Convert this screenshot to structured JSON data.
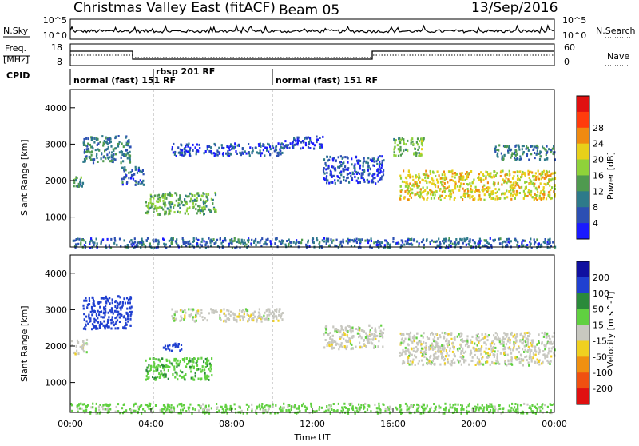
{
  "header": {
    "title": "Christmas Valley East (fitACF)",
    "beam": "Beam 05",
    "date": "13/Sep/2016"
  },
  "nsky_panel": {
    "left_label": "N.Sky",
    "right_label": "N.Search",
    "left_ticks": [
      "10^5",
      "10^0"
    ],
    "right_ticks": [
      "10^5",
      "10^0"
    ]
  },
  "freq_panel": {
    "left_label_line1": "Freq.",
    "left_label_line2": "[MHz]",
    "left_ticks": [
      "18",
      "8"
    ],
    "right_ticks": [
      "60",
      "0"
    ],
    "right_label": "Nave"
  },
  "cpid_panel": {
    "label": "CPID",
    "segments": [
      {
        "text": "normal (fast) 151 RF",
        "start_hour": 0
      },
      {
        "text": "rbsp 201 RF",
        "start_hour": 3.9
      },
      {
        "text": "normal (fast) 151 RF",
        "start_hour": 10.0
      }
    ]
  },
  "x_axis": {
    "label": "Time UT",
    "ticks": [
      "00:00",
      "04:00",
      "08:00",
      "12:00",
      "16:00",
      "20:00",
      "00:00"
    ],
    "range_hours": [
      0,
      24
    ]
  },
  "chart_data": [
    {
      "type": "heatmap",
      "quantity": "Power",
      "ylabel": "Slant Range [km]",
      "ylim": [
        180,
        4500
      ],
      "yticks": [
        1000,
        2000,
        3000,
        4000
      ],
      "colorbar_label": "Power [dB]",
      "colorbar_ticks": [
        4,
        8,
        12,
        16,
        20,
        24,
        28
      ],
      "colorbar_colors": [
        "#1a1aff",
        "#2c4fb3",
        "#2e7a8a",
        "#4f9a4f",
        "#8fd23a",
        "#e8d01a",
        "#f08a10",
        "#ff3c0c",
        "#e01010"
      ],
      "echo_regions": [
        {
          "t_start": 0.0,
          "t_end": 0.6,
          "r_min": 1850,
          "r_max": 2150,
          "level": 14
        },
        {
          "t_start": 0.6,
          "t_end": 3.0,
          "r_min": 2500,
          "r_max": 3250,
          "level": 12
        },
        {
          "t_start": 2.5,
          "t_end": 3.6,
          "r_min": 1900,
          "r_max": 2400,
          "level": 10
        },
        {
          "t_start": 3.7,
          "t_end": 7.2,
          "r_min": 1100,
          "r_max": 1700,
          "level": 17
        },
        {
          "t_start": 5.0,
          "t_end": 10.5,
          "r_min": 2700,
          "r_max": 3050,
          "level": 8
        },
        {
          "t_start": 10.5,
          "t_end": 12.5,
          "r_min": 2900,
          "r_max": 3250,
          "level": 6
        },
        {
          "t_start": 12.5,
          "t_end": 15.5,
          "r_min": 1950,
          "r_max": 2700,
          "level": 8
        },
        {
          "t_start": 16.3,
          "t_end": 24.0,
          "r_min": 1500,
          "r_max": 2300,
          "level": 24
        },
        {
          "t_start": 16.0,
          "t_end": 17.5,
          "r_min": 2700,
          "r_max": 3200,
          "level": 18
        },
        {
          "t_start": 21.0,
          "t_end": 24.0,
          "r_min": 2600,
          "r_max": 3000,
          "level": 12
        },
        {
          "t_start": 0.0,
          "t_end": 24.0,
          "r_min": 180,
          "r_max": 450,
          "level": 10
        }
      ]
    },
    {
      "type": "heatmap",
      "quantity": "Velocity",
      "ylabel": "Slant Range [km]",
      "ylim": [
        180,
        4500
      ],
      "yticks": [
        1000,
        2000,
        3000,
        4000
      ],
      "colorbar_label": "Velocity [m s^-1]",
      "colorbar_ticks": [
        200,
        100,
        50,
        15,
        -15,
        -50,
        -100,
        -200
      ],
      "colorbar_colors": [
        "#1010a0",
        "#2040d0",
        "#2a8a3a",
        "#60d040",
        "#c8c8c0",
        "#f0d020",
        "#f09010",
        "#f05010",
        "#e01010"
      ],
      "echo_regions": [
        {
          "t_start": 0.0,
          "t_end": 0.8,
          "r_min": 1800,
          "r_max": 2200,
          "level": 0
        },
        {
          "t_start": 0.6,
          "t_end": 3.0,
          "r_min": 2500,
          "r_max": 3400,
          "level": 120
        },
        {
          "t_start": 3.7,
          "t_end": 7.0,
          "r_min": 1100,
          "r_max": 1700,
          "level": 40
        },
        {
          "t_start": 4.5,
          "t_end": 5.5,
          "r_min": 1900,
          "r_max": 2100,
          "level": 150
        },
        {
          "t_start": 5.0,
          "t_end": 10.5,
          "r_min": 2700,
          "r_max": 3050,
          "level": 0
        },
        {
          "t_start": 12.5,
          "t_end": 15.5,
          "r_min": 1950,
          "r_max": 2600,
          "level": 0
        },
        {
          "t_start": 16.3,
          "t_end": 24.0,
          "r_min": 1500,
          "r_max": 2400,
          "level": 0
        },
        {
          "t_start": 0.0,
          "t_end": 24.0,
          "r_min": 180,
          "r_max": 450,
          "level": 30
        }
      ]
    }
  ]
}
